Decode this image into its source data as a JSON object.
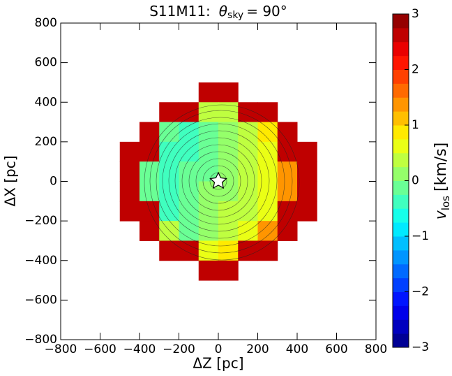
{
  "chart_data": {
    "type": "heatmap",
    "title": {
      "prefix": "S11M11:",
      "symbol": "θ",
      "subscript": "sky",
      "suffix": "= 90°"
    },
    "x_label": "ΔZ [pc]",
    "y_label": "ΔX [pc]",
    "colorbar_label": {
      "symbol": "v",
      "subscript": "los",
      "unit": "[km/s]"
    },
    "colormap": "jet",
    "xlim": [
      -800,
      800
    ],
    "ylim": [
      -800,
      800
    ],
    "xticks": [
      {
        "value": -800,
        "label": "−800"
      },
      {
        "value": -600,
        "label": "−600"
      },
      {
        "value": -400,
        "label": "−400"
      },
      {
        "value": -200,
        "label": "−200"
      },
      0,
      200,
      400,
      600,
      800
    ],
    "yticks": [
      {
        "value": -800,
        "label": "−800"
      },
      {
        "value": -600,
        "label": "−600"
      },
      {
        "value": -400,
        "label": "−400"
      },
      {
        "value": -200,
        "label": "−200"
      },
      0,
      200,
      400,
      600,
      800
    ],
    "clim": [
      -3,
      3
    ],
    "cticks": [
      {
        "value": -3,
        "label": "−3"
      },
      {
        "value": -2,
        "label": "−2"
      },
      {
        "value": -1,
        "label": "−1"
      },
      0,
      1,
      2,
      3
    ],
    "x": [
      -450,
      -350,
      -250,
      -150,
      -50,
      50,
      150,
      250,
      350,
      450
    ],
    "y": [
      450,
      350,
      250,
      150,
      50,
      -50,
      -150,
      -250,
      -350,
      -450
    ],
    "values": [
      [
        null,
        null,
        null,
        null,
        2.7,
        2.7,
        null,
        null,
        null,
        null
      ],
      [
        null,
        null,
        2.7,
        2.7,
        0.29,
        0.49,
        2.7,
        2.7,
        null,
        null
      ],
      [
        null,
        2.7,
        -0.05,
        -0.35,
        -0.15,
        0.05,
        0.25,
        0.95,
        2.7,
        null
      ],
      [
        2.7,
        2.7,
        -0.49,
        -0.29,
        -0.09,
        0.11,
        0.31,
        0.51,
        2.7,
        2.7
      ],
      [
        2.7,
        -0.13,
        -0.43,
        -0.23,
        -0.03,
        0.17,
        0.37,
        0.57,
        1.27,
        2.7
      ],
      [
        2.7,
        -0.07,
        -0.37,
        -0.17,
        0.03,
        0.23,
        0.43,
        0.63,
        1.33,
        2.7
      ],
      [
        2.7,
        2.7,
        -0.31,
        -0.11,
        0.09,
        0.29,
        0.49,
        0.69,
        2.7,
        2.7
      ],
      [
        null,
        2.7,
        0.25,
        -0.05,
        0.15,
        0.35,
        0.55,
        1.25,
        2.7,
        null
      ],
      [
        null,
        null,
        2.7,
        2.7,
        0.71,
        0.91,
        2.7,
        2.7,
        null,
        null
      ],
      [
        null,
        null,
        null,
        null,
        2.7,
        2.7,
        null,
        null,
        null,
        null
      ]
    ]
  }
}
